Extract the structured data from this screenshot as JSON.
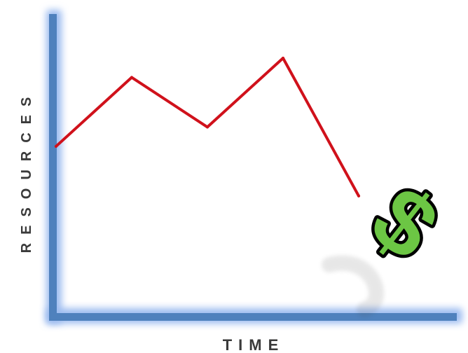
{
  "chart_data": {
    "type": "line",
    "title": "",
    "xlabel": "TIME",
    "ylabel": "RESOURCES",
    "x": [
      0,
      1,
      2,
      3,
      4
    ],
    "series": [
      {
        "values": [
          0.62,
          0.87,
          0.69,
          0.94,
          0.44
        ]
      }
    ],
    "xlim": [
      0,
      5
    ],
    "ylim": [
      0,
      1.1
    ],
    "grid": false,
    "line_color": "#d0111b",
    "axis_color": "#4f81bd",
    "axis_glow_color": "#9dbcf0",
    "symbol_color": "#6cc644"
  },
  "icons": {
    "symbol": "dollar-sign-icon"
  }
}
